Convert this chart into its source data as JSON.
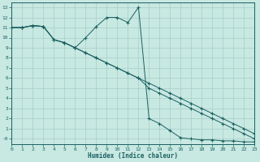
{
  "xlabel": "Humidex (Indice chaleur)",
  "bg_color": "#c8e8e2",
  "grid_color": "#a8cdc8",
  "line_color": "#1a6060",
  "xlim": [
    0,
    23
  ],
  "ylim": [
    -0.5,
    13.5
  ],
  "ytick_vals": [
    0,
    1,
    2,
    3,
    4,
    5,
    6,
    7,
    8,
    9,
    10,
    11,
    12,
    13
  ],
  "ytick_labels": [
    "-0",
    "1",
    "2",
    "3",
    "4",
    "5",
    "6",
    "7",
    "8",
    "9",
    "10",
    "11",
    "12",
    "13"
  ],
  "xtick_vals": [
    0,
    1,
    2,
    3,
    4,
    5,
    6,
    7,
    8,
    9,
    10,
    11,
    12,
    13,
    14,
    15,
    16,
    17,
    18,
    19,
    20,
    21,
    22,
    23
  ],
  "line1_x": [
    0,
    1,
    2,
    3,
    4,
    5,
    6,
    7,
    8,
    9,
    10,
    11,
    12,
    13,
    14,
    15,
    16,
    17,
    18,
    19,
    20,
    21,
    22,
    23
  ],
  "line1_y": [
    11,
    11,
    11.2,
    11.1,
    9.8,
    9.5,
    9.0,
    8.5,
    8.0,
    7.5,
    7.0,
    6.5,
    6.0,
    5.5,
    5.0,
    4.5,
    4.0,
    3.5,
    3.0,
    2.5,
    2.0,
    1.5,
    1.0,
    0.5
  ],
  "line2_x": [
    0,
    1,
    2,
    3,
    4,
    5,
    6,
    7,
    8,
    9,
    10,
    11,
    12,
    13,
    14,
    15,
    16,
    17,
    18,
    19,
    20,
    21,
    22,
    23
  ],
  "line2_y": [
    11,
    11,
    11.2,
    11.1,
    9.8,
    9.5,
    9.0,
    10.0,
    11.1,
    12.0,
    12.0,
    11.5,
    13.0,
    2.0,
    1.5,
    0.8,
    0.1,
    0.0,
    -0.1,
    -0.1,
    -0.2,
    -0.2,
    -0.3,
    -0.3
  ],
  "line3_x": [
    0,
    1,
    2,
    3,
    4,
    5,
    6,
    7,
    8,
    9,
    10,
    11,
    12,
    13,
    14,
    15,
    16,
    17,
    18,
    19,
    20,
    21,
    22,
    23
  ],
  "line3_y": [
    11,
    11,
    11.2,
    11.1,
    9.8,
    9.5,
    9.0,
    8.5,
    8.0,
    7.5,
    7.0,
    6.5,
    6.0,
    5.0,
    4.5,
    4.0,
    3.5,
    3.0,
    2.5,
    2.0,
    1.5,
    1.0,
    0.5,
    0.0
  ]
}
